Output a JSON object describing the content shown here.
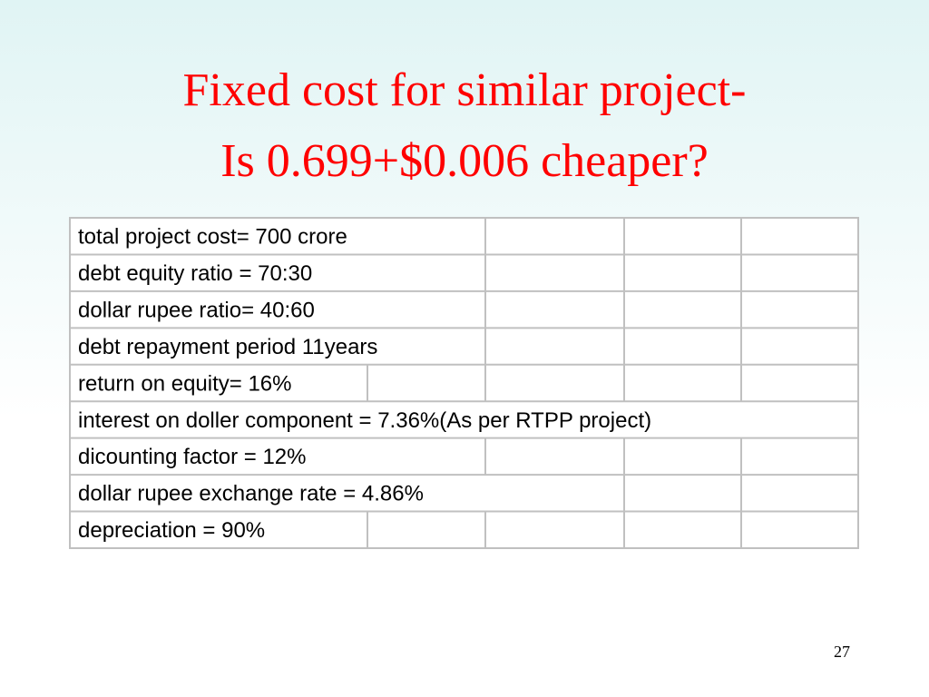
{
  "title": {
    "line1": "Fixed cost for similar project-",
    "line2": "Is 0.699+$0.006 cheaper?"
  },
  "table": {
    "rows": [
      "total project cost= 700 crore",
      "debt equity ratio = 70:30",
      "dollar rupee ratio= 40:60",
      "debt repayment period 11years",
      "return on equity= 16%",
      "interest on doller component = 7.36%(As per RTPP project)",
      "dicounting factor = 12%",
      "dollar rupee exchange rate = 4.86%",
      "depreciation = 90%"
    ]
  },
  "page_number": "27"
}
